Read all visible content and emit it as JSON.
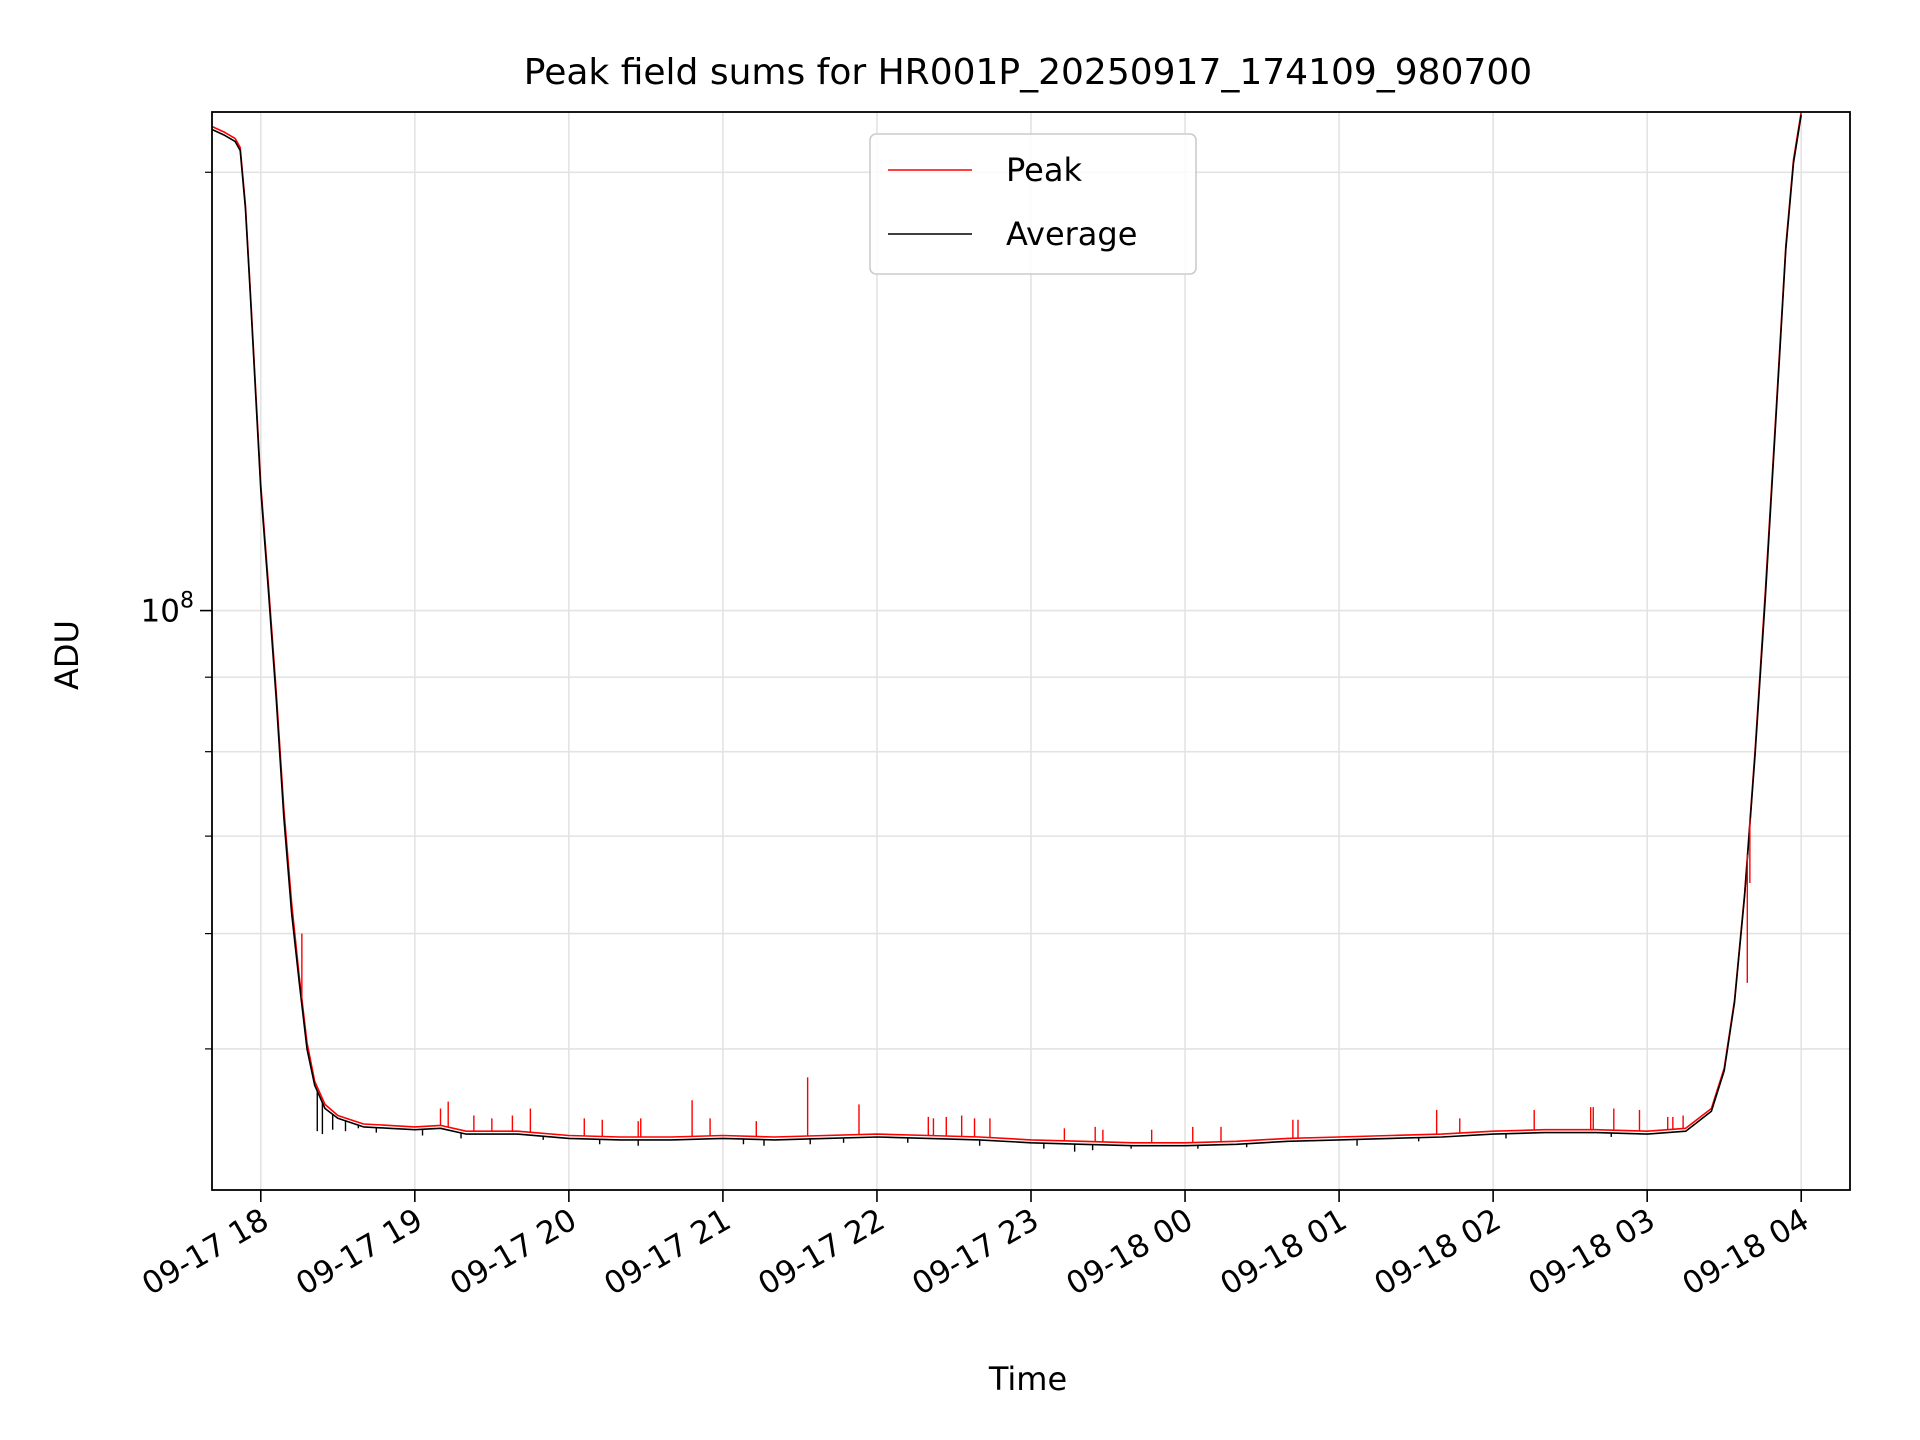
{
  "chart_data": {
    "type": "line",
    "title": "Peak field sums for HR001P_20250917_174109_980700",
    "xlabel": "Time",
    "ylabel": "ADU",
    "y_scale": "log",
    "ylim": [
      40000000,
      220000000
    ],
    "y_major_ticks": [
      {
        "value": 100000000,
        "base": "10",
        "exp": "8"
      }
    ],
    "y_minor_ticks": [
      50000000,
      60000000,
      70000000,
      80000000,
      90000000,
      200000000
    ],
    "xlim": [
      "2025-09-17 17:41",
      "2025-09-18 04:19"
    ],
    "x_ticks": [
      {
        "t": "2025-09-17 18:00",
        "label": "09-17 18"
      },
      {
        "t": "2025-09-17 19:00",
        "label": "09-17 19"
      },
      {
        "t": "2025-09-17 20:00",
        "label": "09-17 20"
      },
      {
        "t": "2025-09-17 21:00",
        "label": "09-17 21"
      },
      {
        "t": "2025-09-17 22:00",
        "label": "09-17 22"
      },
      {
        "t": "2025-09-17 23:00",
        "label": "09-17 23"
      },
      {
        "t": "2025-09-18 00:00",
        "label": "09-18 00"
      },
      {
        "t": "2025-09-18 01:00",
        "label": "09-18 01"
      },
      {
        "t": "2025-09-18 02:00",
        "label": "09-18 02"
      },
      {
        "t": "2025-09-18 03:00",
        "label": "09-18 03"
      },
      {
        "t": "2025-09-18 04:00",
        "label": "09-18 04"
      }
    ],
    "grid": true,
    "legend_position": "top-center",
    "series": [
      {
        "name": "Peak",
        "color": "#ff0000",
        "points": [
          [
            "2025-09-17 17:41",
            215000000
          ],
          [
            "2025-09-17 17:46",
            213000000
          ],
          [
            "2025-09-17 17:50",
            211000000
          ],
          [
            "2025-09-17 17:52",
            208000000
          ],
          [
            "2025-09-17 17:54",
            190000000
          ],
          [
            "2025-09-17 17:56",
            165000000
          ],
          [
            "2025-09-17 17:58",
            142000000
          ],
          [
            "2025-09-17 18:00",
            122000000
          ],
          [
            "2025-09-17 18:03",
            104000000
          ],
          [
            "2025-09-17 18:06",
            88000000
          ],
          [
            "2025-09-17 18:09",
            73000000
          ],
          [
            "2025-09-17 18:12",
            63000000
          ],
          [
            "2025-09-17 18:15",
            56000000
          ],
          [
            "2025-09-17 18:18",
            50500000
          ],
          [
            "2025-09-17 18:21",
            47500000
          ],
          [
            "2025-09-17 18:25",
            45800000
          ],
          [
            "2025-09-17 18:30",
            45000000
          ],
          [
            "2025-09-17 18:40",
            44400000
          ],
          [
            "2025-09-17 18:50",
            44300000
          ],
          [
            "2025-09-17 19:00",
            44200000
          ],
          [
            "2025-09-17 19:10",
            44300000
          ],
          [
            "2025-09-17 19:20",
            43900000
          ],
          [
            "2025-09-17 19:40",
            43900000
          ],
          [
            "2025-09-17 20:00",
            43600000
          ],
          [
            "2025-09-17 20:20",
            43500000
          ],
          [
            "2025-09-17 20:40",
            43500000
          ],
          [
            "2025-09-17 21:00",
            43600000
          ],
          [
            "2025-09-17 21:20",
            43500000
          ],
          [
            "2025-09-17 21:40",
            43600000
          ],
          [
            "2025-09-17 22:00",
            43700000
          ],
          [
            "2025-09-17 22:20",
            43600000
          ],
          [
            "2025-09-17 22:40",
            43500000
          ],
          [
            "2025-09-17 23:00",
            43300000
          ],
          [
            "2025-09-17 23:20",
            43200000
          ],
          [
            "2025-09-17 23:40",
            43100000
          ],
          [
            "2025-09-18 00:00",
            43100000
          ],
          [
            "2025-09-18 00:20",
            43200000
          ],
          [
            "2025-09-18 00:40",
            43400000
          ],
          [
            "2025-09-18 01:00",
            43500000
          ],
          [
            "2025-09-18 01:20",
            43600000
          ],
          [
            "2025-09-18 01:40",
            43700000
          ],
          [
            "2025-09-18 02:00",
            43900000
          ],
          [
            "2025-09-18 02:20",
            44000000
          ],
          [
            "2025-09-18 02:40",
            44000000
          ],
          [
            "2025-09-18 03:00",
            43900000
          ],
          [
            "2025-09-18 03:15",
            44100000
          ],
          [
            "2025-09-18 03:25",
            45500000
          ],
          [
            "2025-09-18 03:30",
            48500000
          ],
          [
            "2025-09-18 03:34",
            54000000
          ],
          [
            "2025-09-18 03:38",
            64000000
          ],
          [
            "2025-09-18 03:42",
            80000000
          ],
          [
            "2025-09-18 03:46",
            103000000
          ],
          [
            "2025-09-18 03:50",
            135000000
          ],
          [
            "2025-09-18 03:54",
            178000000
          ],
          [
            "2025-09-18 03:57",
            204000000
          ],
          [
            "2025-09-18 04:00",
            220000000
          ]
        ]
      },
      {
        "name": "Average",
        "color": "#000000",
        "points": [
          [
            "2025-09-17 17:41",
            214000000
          ],
          [
            "2025-09-17 17:46",
            212000000
          ],
          [
            "2025-09-17 17:50",
            210000000
          ],
          [
            "2025-09-17 17:52",
            207000000
          ],
          [
            "2025-09-17 17:54",
            189000000
          ],
          [
            "2025-09-17 17:56",
            164000000
          ],
          [
            "2025-09-17 17:58",
            141000000
          ],
          [
            "2025-09-17 18:00",
            121000000
          ],
          [
            "2025-09-17 18:03",
            103000000
          ],
          [
            "2025-09-17 18:06",
            87000000
          ],
          [
            "2025-09-17 18:09",
            72000000
          ],
          [
            "2025-09-17 18:12",
            62000000
          ],
          [
            "2025-09-17 18:15",
            55500000
          ],
          [
            "2025-09-17 18:18",
            50000000
          ],
          [
            "2025-09-17 18:21",
            47200000
          ],
          [
            "2025-09-17 18:25",
            45500000
          ],
          [
            "2025-09-17 18:30",
            44800000
          ],
          [
            "2025-09-17 18:40",
            44200000
          ],
          [
            "2025-09-17 18:50",
            44100000
          ],
          [
            "2025-09-17 19:00",
            44000000
          ],
          [
            "2025-09-17 19:10",
            44100000
          ],
          [
            "2025-09-17 19:20",
            43700000
          ],
          [
            "2025-09-17 19:40",
            43700000
          ],
          [
            "2025-09-17 20:00",
            43400000
          ],
          [
            "2025-09-17 20:20",
            43300000
          ],
          [
            "2025-09-17 20:40",
            43300000
          ],
          [
            "2025-09-17 21:00",
            43400000
          ],
          [
            "2025-09-17 21:20",
            43300000
          ],
          [
            "2025-09-17 21:40",
            43400000
          ],
          [
            "2025-09-17 22:00",
            43500000
          ],
          [
            "2025-09-17 22:20",
            43400000
          ],
          [
            "2025-09-17 22:40",
            43300000
          ],
          [
            "2025-09-17 23:00",
            43100000
          ],
          [
            "2025-09-17 23:20",
            43000000
          ],
          [
            "2025-09-17 23:40",
            42900000
          ],
          [
            "2025-09-18 00:00",
            42900000
          ],
          [
            "2025-09-18 00:20",
            43000000
          ],
          [
            "2025-09-18 00:40",
            43200000
          ],
          [
            "2025-09-18 01:00",
            43300000
          ],
          [
            "2025-09-18 01:20",
            43400000
          ],
          [
            "2025-09-18 01:40",
            43500000
          ],
          [
            "2025-09-18 02:00",
            43700000
          ],
          [
            "2025-09-18 02:20",
            43800000
          ],
          [
            "2025-09-18 02:40",
            43800000
          ],
          [
            "2025-09-18 03:00",
            43700000
          ],
          [
            "2025-09-18 03:15",
            43900000
          ],
          [
            "2025-09-18 03:25",
            45300000
          ],
          [
            "2025-09-18 03:30",
            48300000
          ],
          [
            "2025-09-18 03:34",
            53800000
          ],
          [
            "2025-09-18 03:38",
            63800000
          ],
          [
            "2025-09-18 03:42",
            79500000
          ],
          [
            "2025-09-18 03:46",
            102000000
          ],
          [
            "2025-09-18 03:50",
            134000000
          ],
          [
            "2025-09-18 03:54",
            177000000
          ],
          [
            "2025-09-18 03:57",
            203000000
          ],
          [
            "2025-09-18 04:00",
            219000000
          ]
        ]
      }
    ],
    "peak_spikes": [
      [
        "2025-09-17 18:16",
        60000000
      ],
      [
        "2025-09-17 19:10",
        45500000
      ],
      [
        "2025-09-17 19:13",
        46000000
      ],
      [
        "2025-09-17 19:23",
        45000000
      ],
      [
        "2025-09-17 19:30",
        44800000
      ],
      [
        "2025-09-17 19:38",
        45000000
      ],
      [
        "2025-09-17 19:45",
        45500000
      ],
      [
        "2025-09-17 20:06",
        44800000
      ],
      [
        "2025-09-17 20:13",
        44700000
      ],
      [
        "2025-09-17 20:27",
        44600000
      ],
      [
        "2025-09-17 20:28",
        44800000
      ],
      [
        "2025-09-17 20:48",
        46100000
      ],
      [
        "2025-09-17 20:55",
        44800000
      ],
      [
        "2025-09-17 21:13",
        44600000
      ],
      [
        "2025-09-17 21:33",
        47800000
      ],
      [
        "2025-09-17 21:53",
        45800000
      ],
      [
        "2025-09-17 22:20",
        44900000
      ],
      [
        "2025-09-17 22:22",
        44800000
      ],
      [
        "2025-09-17 22:27",
        44900000
      ],
      [
        "2025-09-17 22:33",
        45000000
      ],
      [
        "2025-09-17 22:38",
        44800000
      ],
      [
        "2025-09-17 22:44",
        44800000
      ],
      [
        "2025-09-17 23:13",
        44100000
      ],
      [
        "2025-09-17 23:25",
        44200000
      ],
      [
        "2025-09-17 23:28",
        44000000
      ],
      [
        "2025-09-17 23:47",
        44000000
      ],
      [
        "2025-09-18 00:03",
        44200000
      ],
      [
        "2025-09-18 00:14",
        44200000
      ],
      [
        "2025-09-18 00:42",
        44700000
      ],
      [
        "2025-09-18 00:44",
        44700000
      ],
      [
        "2025-09-18 01:38",
        45400000
      ],
      [
        "2025-09-18 01:47",
        44800000
      ],
      [
        "2025-09-18 02:16",
        45400000
      ],
      [
        "2025-09-18 02:38",
        45600000
      ],
      [
        "2025-09-18 02:39",
        45600000
      ],
      [
        "2025-09-18 02:47",
        45500000
      ],
      [
        "2025-09-18 02:57",
        45400000
      ],
      [
        "2025-09-18 03:08",
        44900000
      ],
      [
        "2025-09-18 03:10",
        44900000
      ],
      [
        "2025-09-18 03:14",
        45000000
      ],
      [
        "2025-09-18 03:39",
        55500000
      ],
      [
        "2025-09-18 03:40",
        65000000
      ]
    ],
    "average_dips": [
      [
        "2025-09-17 18:22",
        43900000
      ],
      [
        "2025-09-17 18:24",
        43700000
      ],
      [
        "2025-09-17 18:28",
        44000000
      ],
      [
        "2025-09-17 18:33",
        43900000
      ],
      [
        "2025-09-17 18:38",
        44100000
      ],
      [
        "2025-09-17 18:45",
        43800000
      ],
      [
        "2025-09-17 19:03",
        43600000
      ],
      [
        "2025-09-17 19:18",
        43400000
      ],
      [
        "2025-09-17 19:50",
        43300000
      ],
      [
        "2025-09-17 20:12",
        43000000
      ],
      [
        "2025-09-17 20:27",
        42900000
      ],
      [
        "2025-09-17 21:08",
        43000000
      ],
      [
        "2025-09-17 21:16",
        42900000
      ],
      [
        "2025-09-17 21:34",
        43000000
      ],
      [
        "2025-09-17 21:47",
        43100000
      ],
      [
        "2025-09-17 22:12",
        43100000
      ],
      [
        "2025-09-17 22:40",
        42900000
      ],
      [
        "2025-09-17 23:05",
        42700000
      ],
      [
        "2025-09-17 23:17",
        42500000
      ],
      [
        "2025-09-17 23:24",
        42600000
      ],
      [
        "2025-09-17 23:39",
        42700000
      ],
      [
        "2025-09-18 00:05",
        42700000
      ],
      [
        "2025-09-18 00:24",
        42800000
      ],
      [
        "2025-09-18 01:07",
        42900000
      ],
      [
        "2025-09-18 01:31",
        43200000
      ],
      [
        "2025-09-18 02:05",
        43400000
      ],
      [
        "2025-09-18 02:46",
        43500000
      ]
    ]
  }
}
